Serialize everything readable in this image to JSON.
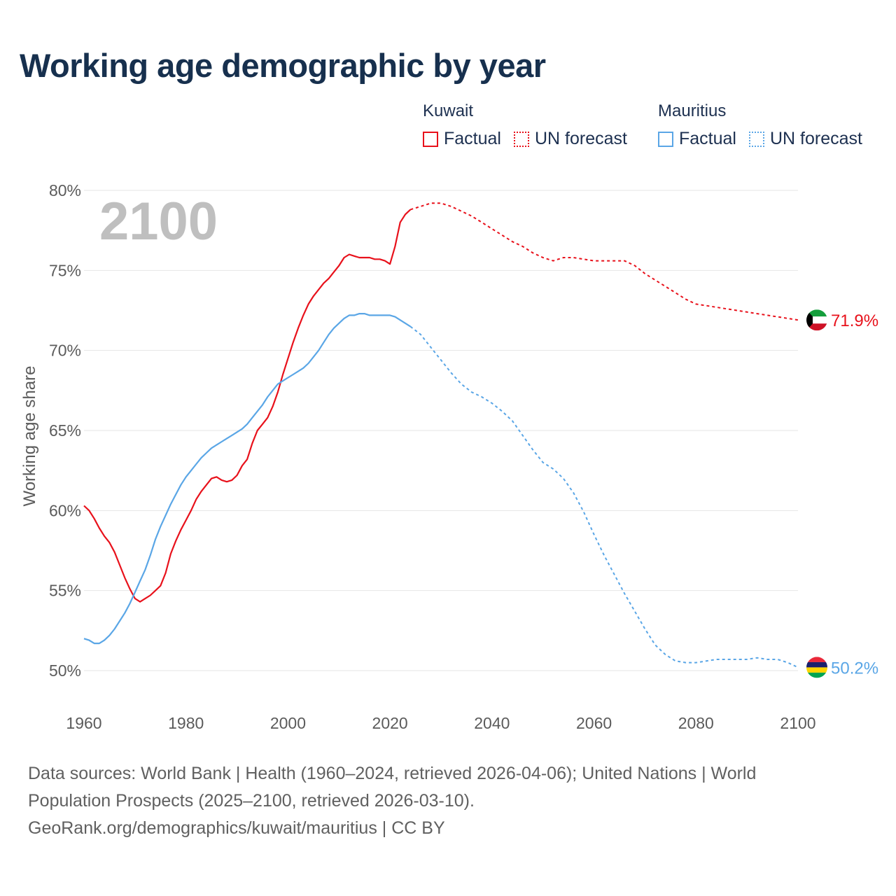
{
  "header": {
    "title": "Working age demographic by year"
  },
  "legend": {
    "groups": [
      {
        "name": "Kuwait",
        "color": "#e8111b",
        "items": [
          {
            "label": "Factual",
            "style": "solid"
          },
          {
            "label": "UN forecast",
            "style": "dotted"
          }
        ]
      },
      {
        "name": "Mauritius",
        "color": "#5aa6e6",
        "items": [
          {
            "label": "Factual",
            "style": "solid"
          },
          {
            "label": "UN forecast",
            "style": "dotted"
          }
        ]
      }
    ]
  },
  "footer": {
    "sources": "Data sources: World Bank | Health (1960–2024, retrieved 2026-04-06); United Nations | World Population Prospects (2025–2100, retrieved 2026-03-10).",
    "credit": "GeoRank.org/demographics/kuwait/mauritius | CC BY"
  },
  "chart_data": {
    "type": "line",
    "title": "Working age demographic by year",
    "xlabel": "",
    "ylabel": "Working age share",
    "year_watermark": "2100",
    "xlim": [
      1960,
      2100
    ],
    "ylim": [
      50,
      80
    ],
    "x_ticks": [
      1960,
      1980,
      2000,
      2020,
      2040,
      2060,
      2080,
      2100
    ],
    "y_ticks": [
      50,
      55,
      60,
      65,
      70,
      75,
      80
    ],
    "y_tick_labels": [
      "50%",
      "55%",
      "60%",
      "65%",
      "70%",
      "75%",
      "80%"
    ],
    "grid": true,
    "forecast_start": 2024,
    "series": [
      {
        "name": "Kuwait",
        "color": "#e8111b",
        "flag_icon": "kuwait-flag-icon",
        "end_label": "71.9%",
        "points": [
          [
            1960,
            60.3
          ],
          [
            1961,
            60.0
          ],
          [
            1962,
            59.5
          ],
          [
            1963,
            58.9
          ],
          [
            1964,
            58.4
          ],
          [
            1965,
            58.0
          ],
          [
            1966,
            57.4
          ],
          [
            1967,
            56.6
          ],
          [
            1968,
            55.8
          ],
          [
            1969,
            55.1
          ],
          [
            1970,
            54.5
          ],
          [
            1971,
            54.3
          ],
          [
            1972,
            54.5
          ],
          [
            1973,
            54.7
          ],
          [
            1974,
            55.0
          ],
          [
            1975,
            55.3
          ],
          [
            1976,
            56.1
          ],
          [
            1977,
            57.3
          ],
          [
            1978,
            58.1
          ],
          [
            1979,
            58.8
          ],
          [
            1980,
            59.4
          ],
          [
            1981,
            60.0
          ],
          [
            1982,
            60.7
          ],
          [
            1983,
            61.2
          ],
          [
            1984,
            61.6
          ],
          [
            1985,
            62.0
          ],
          [
            1986,
            62.1
          ],
          [
            1987,
            61.9
          ],
          [
            1988,
            61.8
          ],
          [
            1989,
            61.9
          ],
          [
            1990,
            62.2
          ],
          [
            1991,
            62.8
          ],
          [
            1992,
            63.2
          ],
          [
            1993,
            64.2
          ],
          [
            1994,
            65.0
          ],
          [
            1995,
            65.4
          ],
          [
            1996,
            65.8
          ],
          [
            1997,
            66.5
          ],
          [
            1998,
            67.4
          ],
          [
            1999,
            68.5
          ],
          [
            2000,
            69.5
          ],
          [
            2001,
            70.5
          ],
          [
            2002,
            71.4
          ],
          [
            2003,
            72.2
          ],
          [
            2004,
            72.9
          ],
          [
            2005,
            73.4
          ],
          [
            2006,
            73.8
          ],
          [
            2007,
            74.2
          ],
          [
            2008,
            74.5
          ],
          [
            2009,
            74.9
          ],
          [
            2010,
            75.3
          ],
          [
            2011,
            75.8
          ],
          [
            2012,
            76.0
          ],
          [
            2013,
            75.9
          ],
          [
            2014,
            75.8
          ],
          [
            2015,
            75.8
          ],
          [
            2016,
            75.8
          ],
          [
            2017,
            75.7
          ],
          [
            2018,
            75.7
          ],
          [
            2019,
            75.6
          ],
          [
            2020,
            75.4
          ],
          [
            2021,
            76.5
          ],
          [
            2022,
            78.0
          ],
          [
            2023,
            78.5
          ],
          [
            2024,
            78.8
          ]
        ],
        "forecast": [
          [
            2024,
            78.8
          ],
          [
            2026,
            79.0
          ],
          [
            2028,
            79.2
          ],
          [
            2030,
            79.2
          ],
          [
            2032,
            79.0
          ],
          [
            2034,
            78.7
          ],
          [
            2036,
            78.4
          ],
          [
            2038,
            78.0
          ],
          [
            2040,
            77.6
          ],
          [
            2042,
            77.2
          ],
          [
            2044,
            76.8
          ],
          [
            2046,
            76.5
          ],
          [
            2048,
            76.1
          ],
          [
            2050,
            75.8
          ],
          [
            2052,
            75.6
          ],
          [
            2054,
            75.8
          ],
          [
            2056,
            75.8
          ],
          [
            2058,
            75.7
          ],
          [
            2060,
            75.6
          ],
          [
            2062,
            75.6
          ],
          [
            2064,
            75.6
          ],
          [
            2066,
            75.6
          ],
          [
            2068,
            75.3
          ],
          [
            2070,
            74.8
          ],
          [
            2072,
            74.4
          ],
          [
            2074,
            74.0
          ],
          [
            2076,
            73.6
          ],
          [
            2078,
            73.2
          ],
          [
            2080,
            72.9
          ],
          [
            2082,
            72.8
          ],
          [
            2084,
            72.7
          ],
          [
            2086,
            72.6
          ],
          [
            2088,
            72.5
          ],
          [
            2090,
            72.4
          ],
          [
            2092,
            72.3
          ],
          [
            2094,
            72.2
          ],
          [
            2096,
            72.1
          ],
          [
            2098,
            72.0
          ],
          [
            2100,
            71.9
          ]
        ]
      },
      {
        "name": "Mauritius",
        "color": "#5aa6e6",
        "flag_icon": "mauritius-flag-icon",
        "end_label": "50.2%",
        "points": [
          [
            1960,
            52.0
          ],
          [
            1961,
            51.9
          ],
          [
            1962,
            51.7
          ],
          [
            1963,
            51.7
          ],
          [
            1964,
            51.9
          ],
          [
            1965,
            52.2
          ],
          [
            1966,
            52.6
          ],
          [
            1967,
            53.1
          ],
          [
            1968,
            53.6
          ],
          [
            1969,
            54.2
          ],
          [
            1970,
            54.9
          ],
          [
            1971,
            55.6
          ],
          [
            1972,
            56.3
          ],
          [
            1973,
            57.2
          ],
          [
            1974,
            58.2
          ],
          [
            1975,
            59.0
          ],
          [
            1976,
            59.7
          ],
          [
            1977,
            60.4
          ],
          [
            1978,
            61.0
          ],
          [
            1979,
            61.6
          ],
          [
            1980,
            62.1
          ],
          [
            1981,
            62.5
          ],
          [
            1982,
            62.9
          ],
          [
            1983,
            63.3
          ],
          [
            1984,
            63.6
          ],
          [
            1985,
            63.9
          ],
          [
            1986,
            64.1
          ],
          [
            1987,
            64.3
          ],
          [
            1988,
            64.5
          ],
          [
            1989,
            64.7
          ],
          [
            1990,
            64.9
          ],
          [
            1991,
            65.1
          ],
          [
            1992,
            65.4
          ],
          [
            1993,
            65.8
          ],
          [
            1994,
            66.2
          ],
          [
            1995,
            66.6
          ],
          [
            1996,
            67.1
          ],
          [
            1997,
            67.5
          ],
          [
            1998,
            67.9
          ],
          [
            1999,
            68.1
          ],
          [
            2000,
            68.3
          ],
          [
            2001,
            68.5
          ],
          [
            2002,
            68.7
          ],
          [
            2003,
            68.9
          ],
          [
            2004,
            69.2
          ],
          [
            2005,
            69.6
          ],
          [
            2006,
            70.0
          ],
          [
            2007,
            70.5
          ],
          [
            2008,
            71.0
          ],
          [
            2009,
            71.4
          ],
          [
            2010,
            71.7
          ],
          [
            2011,
            72.0
          ],
          [
            2012,
            72.2
          ],
          [
            2013,
            72.2
          ],
          [
            2014,
            72.3
          ],
          [
            2015,
            72.3
          ],
          [
            2016,
            72.2
          ],
          [
            2017,
            72.2
          ],
          [
            2018,
            72.2
          ],
          [
            2019,
            72.2
          ],
          [
            2020,
            72.2
          ],
          [
            2021,
            72.1
          ],
          [
            2022,
            71.9
          ],
          [
            2023,
            71.7
          ],
          [
            2024,
            71.5
          ]
        ],
        "forecast": [
          [
            2024,
            71.5
          ],
          [
            2026,
            71.0
          ],
          [
            2028,
            70.2
          ],
          [
            2030,
            69.4
          ],
          [
            2032,
            68.6
          ],
          [
            2034,
            67.9
          ],
          [
            2036,
            67.4
          ],
          [
            2038,
            67.1
          ],
          [
            2040,
            66.7
          ],
          [
            2042,
            66.2
          ],
          [
            2044,
            65.6
          ],
          [
            2046,
            64.7
          ],
          [
            2048,
            63.8
          ],
          [
            2050,
            63.0
          ],
          [
            2052,
            62.6
          ],
          [
            2054,
            62.0
          ],
          [
            2056,
            61.1
          ],
          [
            2058,
            59.9
          ],
          [
            2060,
            58.5
          ],
          [
            2062,
            57.2
          ],
          [
            2064,
            56.0
          ],
          [
            2066,
            54.8
          ],
          [
            2068,
            53.7
          ],
          [
            2070,
            52.6
          ],
          [
            2072,
            51.6
          ],
          [
            2074,
            51.0
          ],
          [
            2076,
            50.6
          ],
          [
            2078,
            50.5
          ],
          [
            2080,
            50.5
          ],
          [
            2082,
            50.6
          ],
          [
            2084,
            50.7
          ],
          [
            2086,
            50.7
          ],
          [
            2088,
            50.7
          ],
          [
            2090,
            50.7
          ],
          [
            2092,
            50.8
          ],
          [
            2094,
            50.7
          ],
          [
            2096,
            50.7
          ],
          [
            2098,
            50.5
          ],
          [
            2100,
            50.2
          ]
        ]
      }
    ]
  }
}
